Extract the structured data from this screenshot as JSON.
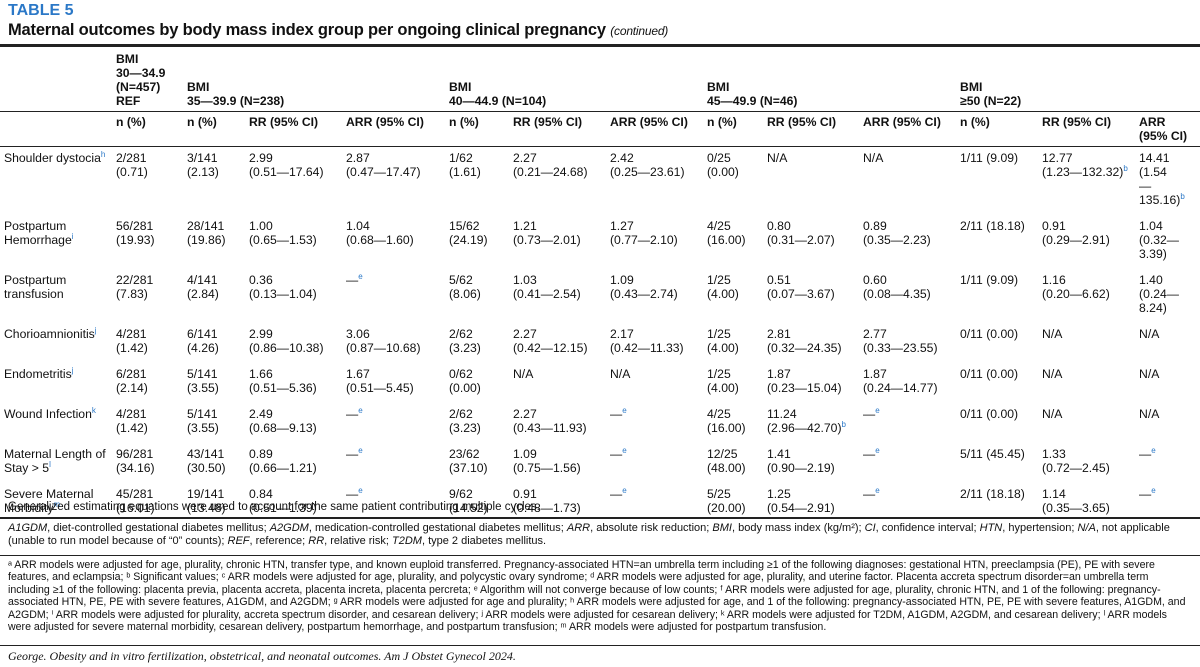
{
  "table_label": "TABLE 5",
  "title": "Maternal outcomes by body mass index group per ongoing clinical pregnancy",
  "title_suffix": "(continued)",
  "groups": [
    [
      "BMI",
      "30—34.9",
      "(N=457)",
      "REF"
    ],
    [
      "BMI",
      "35—39.9 (N=238)"
    ],
    [
      "BMI",
      "40—44.9 (N=104)"
    ],
    [
      "BMI",
      "45—49.9 (N=46)"
    ],
    [
      "BMI",
      "≥50 (N=22)"
    ]
  ],
  "col_headers": [
    "n (%)",
    "n (%)",
    "RR (95% CI)",
    "ARR (95% CI)",
    "n (%)",
    "RR (95% CI)",
    "ARR (95% CI)",
    "n (%)",
    "RR (95% CI)",
    "ARR (95% CI)",
    "n (%)",
    "RR (95% CI)",
    "ARR (95% CI)"
  ],
  "rows": [
    {
      "label": "Shoulder dystocia",
      "sup": "h",
      "cells": [
        [
          "2/281",
          "(0.71)"
        ],
        [
          "3/141",
          "(2.13)"
        ],
        [
          "2.99",
          "(0.51—17.64)"
        ],
        [
          "2.87",
          "(0.47—17.47)"
        ],
        [
          "1/62",
          "(1.61)"
        ],
        [
          "2.27",
          "(0.21—24.68)"
        ],
        [
          "2.42",
          "(0.25—23.61)"
        ],
        [
          "0/25",
          "(0.00)"
        ],
        [
          "N/A"
        ],
        [
          "N/A"
        ],
        [
          "1/11 (9.09)"
        ],
        [
          "12.77",
          "(1.23—132.32)"
        ],
        [
          "14.41",
          "(1.54",
          "—135.16)"
        ]
      ]
    },
    {
      "label": "Postpartum Hemorrhage",
      "sup": "i",
      "cells": [
        [
          "56/281",
          "(19.93)"
        ],
        [
          "28/141",
          "(19.86)"
        ],
        [
          "1.00",
          "(0.65—1.53)"
        ],
        [
          "1.04",
          "(0.68—1.60)"
        ],
        [
          "15/62",
          "(24.19)"
        ],
        [
          "1.21",
          "(0.73—2.01)"
        ],
        [
          "1.27",
          "(0.77—2.10)"
        ],
        [
          "4/25",
          "(16.00)"
        ],
        [
          "0.80",
          "(0.31—2.07)"
        ],
        [
          "0.89",
          "(0.35—2.23)"
        ],
        [
          "2/11 (18.18)"
        ],
        [
          "0.91",
          "(0.29—2.91)"
        ],
        [
          "1.04",
          "(0.32—3.39)"
        ]
      ]
    },
    {
      "label": "Postpartum transfusion",
      "sup": "",
      "cells": [
        [
          "22/281",
          "(7.83)"
        ],
        [
          "4/141",
          "(2.84)"
        ],
        [
          "0.36",
          "(0.13—1.04)"
        ],
        [
          "—"
        ],
        [
          "5/62",
          "(8.06)"
        ],
        [
          "1.03",
          "(0.41—2.54)"
        ],
        [
          "1.09",
          "(0.43—2.74)"
        ],
        [
          "1/25",
          "(4.00)"
        ],
        [
          "0.51",
          "(0.07—3.67)"
        ],
        [
          "0.60",
          "(0.08—4.35)"
        ],
        [
          "1/11 (9.09)"
        ],
        [
          "1.16",
          "(0.20—6.62)"
        ],
        [
          "1.40",
          "(0.24—8.24)"
        ]
      ]
    },
    {
      "label": "Chorioamnionitis",
      "sup": "j",
      "cells": [
        [
          "4/281",
          "(1.42)"
        ],
        [
          "6/141",
          "(4.26)"
        ],
        [
          "2.99",
          "(0.86—10.38)"
        ],
        [
          "3.06",
          "(0.87—10.68)"
        ],
        [
          "2/62",
          "(3.23)"
        ],
        [
          "2.27",
          "(0.42—12.15)"
        ],
        [
          "2.17",
          "(0.42—11.33)"
        ],
        [
          "1/25",
          "(4.00)"
        ],
        [
          "2.81",
          "(0.32—24.35)"
        ],
        [
          "2.77",
          "(0.33—23.55)"
        ],
        [
          "0/11 (0.00)"
        ],
        [
          "N/A"
        ],
        [
          "N/A"
        ]
      ]
    },
    {
      "label": "Endometritis",
      "sup": "j",
      "cells": [
        [
          "6/281",
          "(2.14)"
        ],
        [
          "5/141",
          "(3.55)"
        ],
        [
          "1.66",
          "(0.51—5.36)"
        ],
        [
          "1.67",
          "(0.51—5.45)"
        ],
        [
          "0/62",
          "(0.00)"
        ],
        [
          "N/A"
        ],
        [
          "N/A"
        ],
        [
          "1/25",
          "(4.00)"
        ],
        [
          "1.87",
          "(0.23—15.04)"
        ],
        [
          "1.87",
          "(0.24—14.77)"
        ],
        [
          "0/11 (0.00)"
        ],
        [
          "N/A"
        ],
        [
          "N/A"
        ]
      ]
    },
    {
      "label": "Wound Infection",
      "sup": "k",
      "cells": [
        [
          "4/281",
          "(1.42)"
        ],
        [
          "5/141",
          "(3.55)"
        ],
        [
          "2.49",
          "(0.68—9.13)"
        ],
        [
          "—"
        ],
        [
          "2/62",
          "(3.23)"
        ],
        [
          "2.27",
          "(0.43—11.93)"
        ],
        [
          "—"
        ],
        [
          "4/25",
          "(16.00)"
        ],
        [
          "11.24",
          "(2.96—42.70)"
        ],
        [
          "—"
        ],
        [
          "0/11 (0.00)"
        ],
        [
          "N/A"
        ],
        [
          "N/A"
        ]
      ]
    },
    {
      "label": "Maternal Length of Stay > 5",
      "sup": "l",
      "cells": [
        [
          "96/281",
          "(34.16)"
        ],
        [
          "43/141",
          "(30.50)"
        ],
        [
          "0.89",
          "(0.66—1.21)"
        ],
        [
          "—"
        ],
        [
          "23/62",
          "(37.10)"
        ],
        [
          "1.09",
          "(0.75—1.56)"
        ],
        [
          "—"
        ],
        [
          "12/25",
          "(48.00)"
        ],
        [
          "1.41",
          "(0.90—2.19)"
        ],
        [
          "—"
        ],
        [
          "5/11 (45.45)"
        ],
        [
          "1.33",
          "(0.72—2.45)"
        ],
        [
          "—"
        ]
      ]
    },
    {
      "label": "Severe Maternal Morbidity",
      "sup": "m",
      "cells": [
        [
          "45/281",
          "(16.01)"
        ],
        [
          "19/141",
          "(13.48)"
        ],
        [
          "0.84",
          "(0.51—1.39)"
        ],
        [
          "—"
        ],
        [
          "9/62",
          "(14.52)"
        ],
        [
          "0.91",
          "(0.48—1.73)"
        ],
        [
          "—"
        ],
        [
          "5/25",
          "(20.00)"
        ],
        [
          "1.25",
          "(0.54—2.91)"
        ],
        [
          "—"
        ],
        [
          "2/11 (18.18)"
        ],
        [
          "1.14",
          "(0.35—3.65)"
        ],
        [
          "—"
        ]
      ]
    }
  ],
  "note": "Generalized estimating equations were used to account for the same patient contributing multiple cycles.",
  "abbreviations": "A1GDM, diet-controlled gestational diabetes mellitus; A2GDM, medication-controlled gestational diabetes mellitus; ARR, absolute risk reduction; BMI, body mass index (kg/m²); CI, confidence interval; HTN, hypertension; N/A, not applicable (unable to run model because of “0” counts); REF, reference; RR, relative risk; T2DM, type 2 diabetes mellitus.",
  "footnotes": "ᵃ ARR models were adjusted for age, plurality, chronic HTN, transfer type, and known euploid transferred. Pregnancy-associated HTN=an umbrella term including ≥1 of the following diagnoses: gestational HTN, preeclampsia (PE), PE with severe features, and eclampsia; ᵇ Significant values; ᶜ ARR models were adjusted for age, plurality, and polycystic ovary syndrome; ᵈ ARR models were adjusted for age, plurality, and uterine factor. Placenta accreta spectrum disorder=an umbrella term including ≥1 of the following: placenta previa, placenta accreta, placenta increta, placenta percreta; ᵉ Algorithm will not converge because of low counts; ᶠ ARR models were adjusted for age, plurality, chronic HTN, and 1 of the following: pregnancy-associated HTN, PE, PE with severe features, A1GDM, and A2GDM; ᵍ ARR models were adjusted for age and plurality; ʰ ARR models were adjusted for age, and 1 of the following: pregnancy-associated HTN, PE, PE with severe features, A1GDM, and A2GDM; ⁱ ARR models were adjusted for plurality, accreta spectrum disorder, and cesarean delivery; ʲ ARR models were adjusted for cesarean delivery; ᵏ ARR models were adjusted for T2DM, A1GDM, A2GDM, and cesarean delivery; ˡ ARR models were adjusted for severe maternal morbidity, cesarean delivery, postpartum hemorrhage, and postpartum transfusion; ᵐ ARR models were adjusted for postpartum transfusion.",
  "citation": "George. Obesity and in vitro fertilization, obstetrical, and neonatal outcomes. Am J Obstet Gynecol 2024."
}
